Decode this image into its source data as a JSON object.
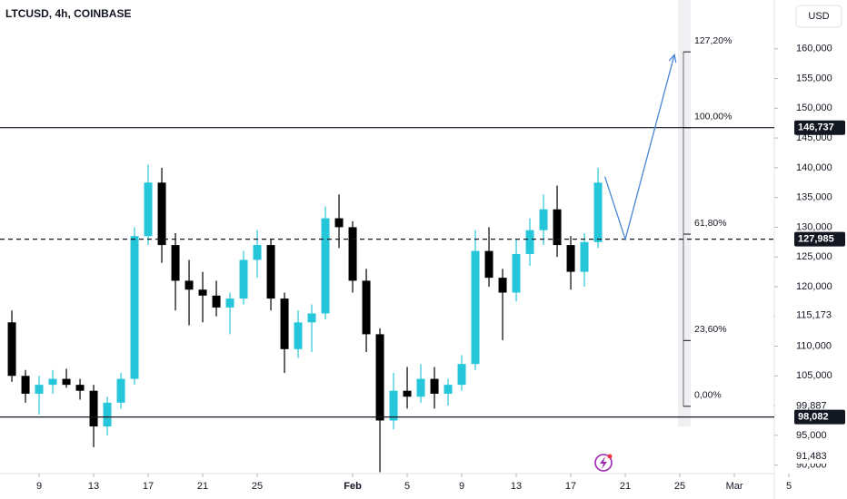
{
  "chart_data": {
    "type": "candlestick",
    "title": "LTCUSD, 4h, COINBASE",
    "currency": "USD",
    "up_color": "#26c6da",
    "down_color": "#000000",
    "xlim": [
      6.13,
      62.93
    ],
    "ylim": [
      84300,
      168200
    ],
    "xticks": [
      9,
      13,
      17,
      21,
      25,
      {
        "value": 32,
        "label": "Feb"
      },
      {
        "value": 36,
        "label": "5"
      },
      {
        "value": 40,
        "label": "9"
      },
      {
        "value": 44,
        "label": "13"
      },
      {
        "value": 48,
        "label": "17"
      },
      {
        "value": 52,
        "label": "21"
      },
      {
        "value": 56,
        "label": "25"
      },
      {
        "value": 60,
        "label": "Mar"
      },
      {
        "value": 64,
        "label": "5"
      }
    ],
    "yticks": [
      {
        "value": 90000,
        "label": "90,000"
      },
      {
        "value": 95000,
        "label": "95,000"
      },
      {
        "value": 100000,
        "label": "100,000"
      },
      {
        "value": 105000,
        "label": "105,000"
      },
      {
        "value": 110000,
        "label": "110,000"
      },
      {
        "value": 115000,
        "label": "115,000"
      },
      {
        "value": 120000,
        "label": "120,000"
      },
      {
        "value": 125000,
        "label": "125,000"
      },
      {
        "value": 130000,
        "label": "130,000"
      },
      {
        "value": 135000,
        "label": "135,000"
      },
      {
        "value": 140000,
        "label": "140,000"
      },
      {
        "value": 145000,
        "label": "145,000"
      },
      {
        "value": 150000,
        "label": "150,000"
      },
      {
        "value": 155000,
        "label": "155,000"
      },
      {
        "value": 160000,
        "label": "160,000"
      }
    ],
    "candles": {
      "x": [
        7,
        8,
        9,
        10,
        11,
        12,
        13,
        14,
        15,
        16,
        17,
        18,
        19,
        20,
        21,
        22,
        23,
        24,
        25,
        26,
        27,
        28,
        29,
        30,
        31,
        32,
        33,
        34,
        35,
        36,
        37,
        38,
        39,
        40,
        41,
        42,
        43,
        44,
        45,
        46,
        47,
        48,
        49,
        50
      ],
      "open": [
        114000,
        105000,
        102000,
        103500,
        104500,
        103500,
        102500,
        96500,
        100500,
        104500,
        128500,
        137500,
        127000,
        121000,
        119500,
        118500,
        116500,
        118000,
        124500,
        127000,
        118000,
        109500,
        114000,
        115500,
        131500,
        130000,
        121000,
        112000,
        97500,
        102500,
        101500,
        104500,
        102000,
        103500,
        107000,
        126000,
        121500,
        119000,
        125500,
        129500,
        133000,
        127000,
        122500,
        127500
      ],
      "high": [
        116000,
        106000,
        105000,
        106000,
        106200,
        104500,
        103500,
        101500,
        105500,
        130000,
        140500,
        140000,
        129000,
        124500,
        122500,
        121000,
        119000,
        126000,
        129500,
        128000,
        119000,
        116000,
        117000,
        133500,
        135500,
        131000,
        123000,
        113000,
        105500,
        106500,
        107000,
        106500,
        104500,
        108500,
        129500,
        130000,
        123000,
        128000,
        131500,
        135500,
        137000,
        128500,
        129000,
        140000
      ],
      "low": [
        104000,
        100500,
        98500,
        102000,
        103000,
        101000,
        93000,
        95000,
        99500,
        103500,
        127000,
        124000,
        116000,
        113500,
        114000,
        115000,
        112000,
        117000,
        121500,
        116000,
        105500,
        108000,
        109000,
        114500,
        126500,
        119000,
        109000,
        88800,
        96000,
        99500,
        100500,
        99500,
        100000,
        102500,
        106000,
        120000,
        111000,
        117500,
        123500,
        127000,
        125000,
        119500,
        120000,
        126500
      ],
      "close": [
        105000,
        102000,
        103500,
        104500,
        103500,
        102500,
        96500,
        100500,
        104500,
        128500,
        137500,
        127000,
        121000,
        119500,
        118500,
        116500,
        118000,
        124500,
        127000,
        118000,
        109500,
        114000,
        115500,
        131500,
        130000,
        121000,
        112000,
        97500,
        102500,
        101500,
        104500,
        102000,
        103500,
        107000,
        126000,
        121500,
        119000,
        125500,
        129500,
        133000,
        127000,
        122500,
        127500,
        137500
      ]
    },
    "levels": [
      {
        "value": 146737,
        "label": "146,737",
        "style": "solid"
      },
      {
        "value": 127985,
        "label": "127,985",
        "style": "dashed"
      },
      {
        "value": 98082,
        "label": "98,082",
        "style": "solid"
      }
    ],
    "price_labels": [
      {
        "value": 115173,
        "label": "115,173"
      },
      {
        "value": 99887,
        "label": "99,887"
      },
      {
        "value": 91483,
        "label": "91,483"
      }
    ],
    "fibonacci": [
      {
        "value": 159480,
        "label": "127,20%"
      },
      {
        "value": 146737,
        "label": "100,00%"
      },
      {
        "value": 128840,
        "label": "61,80%"
      },
      {
        "value": 110944,
        "label": "23,60%"
      },
      {
        "value": 99887,
        "label": "0,00%"
      }
    ],
    "projection": {
      "color": "#4a86d8",
      "x": [
        50.5,
        52,
        55.6
      ],
      "y": [
        138500,
        127985,
        159000
      ]
    }
  }
}
